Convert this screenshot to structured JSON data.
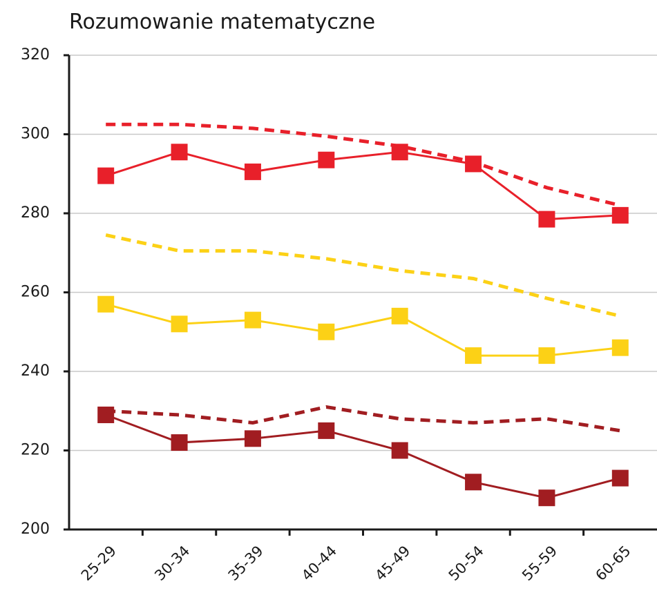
{
  "chart_data": {
    "type": "line",
    "title": "Rozumowanie matematyczne",
    "categories": [
      "25-29",
      "30-34",
      "35-39",
      "40-44",
      "45-49",
      "50-54",
      "55-59",
      "60-65"
    ],
    "series": [
      {
        "color": "#e8202a",
        "dashed": false,
        "marker": "square",
        "values": [
          289.5,
          295.5,
          290.5,
          293.5,
          295.5,
          292.5,
          278.5,
          279.5
        ]
      },
      {
        "color": "#e8202a",
        "dashed": true,
        "marker": "none",
        "values": [
          302.5,
          302.5,
          301.5,
          299.5,
          297,
          293,
          286.5,
          282
        ]
      },
      {
        "color": "#fcd116",
        "dashed": false,
        "marker": "square",
        "values": [
          257,
          252,
          253,
          250,
          254,
          244,
          244,
          246
        ]
      },
      {
        "color": "#fcd116",
        "dashed": true,
        "marker": "none",
        "values": [
          274.5,
          270.5,
          270.5,
          268.5,
          265.5,
          263.5,
          258.5,
          254
        ]
      },
      {
        "color": "#a11d21",
        "dashed": false,
        "marker": "square",
        "values": [
          229,
          222,
          223,
          225,
          220,
          212,
          208,
          213
        ]
      },
      {
        "color": "#a11d21",
        "dashed": true,
        "marker": "none",
        "values": [
          230,
          229,
          227,
          231,
          228,
          227,
          228,
          225
        ]
      }
    ],
    "ylim": [
      200,
      320
    ],
    "yticks": [
      200,
      220,
      240,
      260,
      280,
      300,
      320
    ],
    "grid": true
  }
}
